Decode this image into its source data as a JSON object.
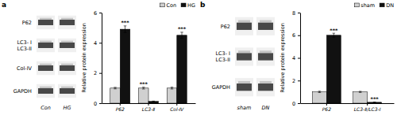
{
  "chart_data": [
    {
      "type": "blot",
      "title": "a",
      "categories": [
        "Con",
        "HG"
      ],
      "annotations": [
        "P62",
        "LC3- I\nLC3-II",
        "Col-IV",
        "GAPDH"
      ]
    },
    {
      "type": "bar",
      "categories": [
        "P62",
        "LC3-Ⅱ",
        "Col-Ⅳ"
      ],
      "series": [
        {
          "name": "Con",
          "color": "#d0d0d0",
          "values": [
            1.0,
            1.0,
            1.0
          ],
          "errors": [
            0.05,
            0.06,
            0.06
          ],
          "annotations": [
            null,
            "***",
            null
          ]
        },
        {
          "name": "HG",
          "color": "#111111",
          "values": [
            4.9,
            0.12,
            4.5
          ],
          "errors": [
            0.22,
            0.02,
            0.2
          ],
          "annotations": [
            "***",
            null,
            "***"
          ]
        }
      ],
      "ylabel": "Relative protein expression",
      "ylim": [
        0,
        6
      ],
      "yticks": [
        0,
        2,
        4,
        6
      ],
      "legend": "upper right"
    },
    {
      "type": "blot",
      "title": "b",
      "categories": [
        "sham",
        "DN"
      ],
      "annotations": [
        "P62",
        "LC3- I\nLC3-II",
        "GAPDH"
      ]
    },
    {
      "type": "bar",
      "categories": [
        "P62",
        "LC3-Ⅱ/LC3-Ⅰ"
      ],
      "series": [
        {
          "name": "sham",
          "color": "#d0d0d0",
          "values": [
            1.0,
            1.0
          ],
          "errors": [
            0.06,
            0.05
          ],
          "annotations": [
            null,
            null
          ]
        },
        {
          "name": "DN",
          "color": "#111111",
          "values": [
            6.0,
            0.08
          ],
          "errors": [
            0.18,
            0.02
          ],
          "annotations": [
            "***",
            "***"
          ]
        }
      ],
      "ylabel": "Relative protein expression",
      "ylim": [
        0,
        8
      ],
      "yticks": [
        0,
        2,
        4,
        6,
        8
      ],
      "legend": "upper right"
    }
  ]
}
